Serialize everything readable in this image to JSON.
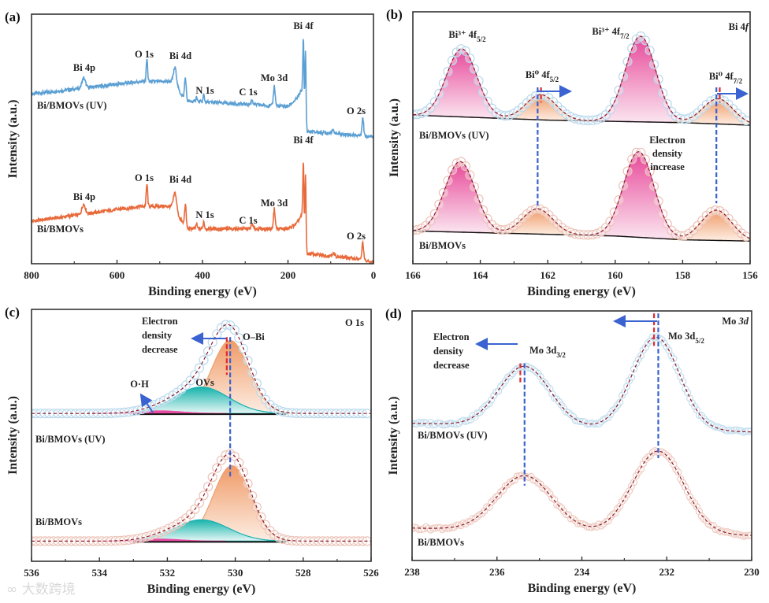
{
  "watermark": "大数跨境",
  "chart_data": [
    {
      "panel": "(a)",
      "type": "line",
      "xlabel": "Binding energy (eV)",
      "ylabel": "Intensity (a.u.)",
      "xlim": [
        800,
        0
      ],
      "ylim": [
        0,
        100
      ],
      "xticks": [
        "800",
        "600",
        "400",
        "200",
        "0"
      ],
      "xtick_values": [
        800,
        600,
        400,
        200,
        0
      ],
      "peak_labels": [
        "Bi 4p",
        "O 1s",
        "Bi 4d",
        "N 1s",
        "C 1s",
        "Mo 3d",
        "Bi 4f",
        "O 2s"
      ],
      "series": [
        {
          "name": "Bi/BMOVs (UV)",
          "color": "#5b9fd3",
          "baseline": [
            [
              800,
              68
            ],
            [
              545,
              73
            ],
            [
              470,
              73
            ],
            [
              438,
              65
            ],
            [
              420,
              65
            ],
            [
              200,
              63
            ],
            [
              180,
              66
            ],
            [
              166,
              70
            ],
            [
              155,
              53
            ],
            [
              0,
              51
            ]
          ],
          "peaks": [
            [
              678,
              4,
              4
            ],
            [
              530,
              9,
              1.6
            ],
            [
              464,
              7,
              3.5
            ],
            [
              440,
              9,
              2
            ],
            [
              414,
              2,
              1.5
            ],
            [
              397,
              3,
              1.5
            ],
            [
              284,
              2,
              2
            ],
            [
              232,
              8,
              2
            ],
            [
              164,
              24,
              1.2
            ],
            [
              159,
              26,
              1.2
            ],
            [
              95,
              1,
              4
            ],
            [
              25,
              7,
              2
            ]
          ]
        },
        {
          "name": "Bi/BMOVs",
          "color": "#e8693a",
          "baseline": [
            [
              800,
              17
            ],
            [
              545,
              23
            ],
            [
              470,
              23
            ],
            [
              438,
              14
            ],
            [
              420,
              14
            ],
            [
              200,
              14
            ],
            [
              180,
              16
            ],
            [
              166,
              20
            ],
            [
              155,
              4
            ],
            [
              40,
              2
            ],
            [
              0,
              0.3
            ]
          ],
          "peaks": [
            [
              678,
              4,
              4
            ],
            [
              530,
              9,
              1.6
            ],
            [
              464,
              7,
              3.5
            ],
            [
              440,
              9,
              2
            ],
            [
              414,
              2,
              1.5
            ],
            [
              397,
              3,
              1.5
            ],
            [
              284,
              2,
              2
            ],
            [
              232,
              8,
              2
            ],
            [
              164,
              24,
              1.2
            ],
            [
              159,
              26,
              1.2
            ],
            [
              95,
              1,
              4
            ],
            [
              25,
              7,
              2
            ]
          ]
        }
      ]
    },
    {
      "panel": "(b)",
      "type": "line",
      "region": "Bi 4",
      "region_italic": "f",
      "xlabel": "Binding energy (eV)",
      "ylabel": "Intensity (a.u.)",
      "xlim": [
        166,
        156
      ],
      "ylim": [
        0,
        100
      ],
      "xticks": [
        "166",
        "164",
        "162",
        "160",
        "158",
        "156"
      ],
      "xtick_values": [
        166,
        164,
        162,
        160,
        158,
        156
      ],
      "component_labels": [
        {
          "main": "Bi³⁺ 4f",
          "sub": "5/2"
        },
        {
          "main": "Bi⁰ 4f",
          "sub": "5/2"
        },
        {
          "main": "Bi³⁺ 4f",
          "sub": "7/2"
        },
        {
          "main": "Bi⁰ 4f",
          "sub": "7/2"
        }
      ],
      "annotation": [
        "Electron",
        "density",
        "increase"
      ],
      "component_colors": {
        "Bi3+": "#e8489a",
        "Bi0": "#f2a070"
      },
      "series": [
        {
          "name": "Bi/BMOVs (UV)",
          "color": "#6fb4e0",
          "marker_color": "#b9d8ec",
          "baseline": [
            [
              166,
              59
            ],
            [
              162,
              57
            ],
            [
              158,
              56
            ],
            [
              156,
              55
            ]
          ],
          "components": [
            [
              "Bi3+",
              164.55,
              27,
              0.45
            ],
            [
              "Bi0",
              162.2,
              10,
              0.45
            ],
            [
              "Bi3+",
              159.25,
              34,
              0.45
            ],
            [
              "Bi0",
              156.95,
              10,
              0.45
            ]
          ]
        },
        {
          "name": "Bi/BMOVs",
          "color": "#f08a5a",
          "marker_color": "#ecc3b8",
          "baseline": [
            [
              166,
              13
            ],
            [
              160,
              11
            ],
            [
              158,
              9.5
            ],
            [
              156,
              9
            ]
          ],
          "components": [
            [
              "Bi3+",
              164.6,
              28,
              0.45
            ],
            [
              "Bi0",
              162.3,
              10,
              0.45
            ],
            [
              "Bi3+",
              159.3,
              34,
              0.45
            ],
            [
              "Bi0",
              157.0,
              12,
              0.45
            ]
          ]
        }
      ],
      "reference_lines": [
        {
          "x": 162.3,
          "y": [
            70,
            22
          ],
          "color": "#3a62d0"
        },
        {
          "x": 162.2,
          "y": [
            70,
            64
          ],
          "color": "#e02b2b"
        },
        {
          "x": 157.0,
          "y": [
            70,
            24
          ],
          "color": "#3a62d0"
        },
        {
          "x": 156.9,
          "y": [
            70,
            64
          ],
          "color": "#e02b2b"
        }
      ]
    },
    {
      "panel": "(c)",
      "type": "line",
      "region": "O 1s",
      "xlabel": "Binding energy (eV)",
      "ylabel": "Intensity (a.u.)",
      "xlim": [
        536,
        526
      ],
      "ylim": [
        0,
        100
      ],
      "xticks": [
        "536",
        "534",
        "532",
        "530",
        "528",
        "526"
      ],
      "xtick_values": [
        536,
        534,
        532,
        530,
        528,
        526
      ],
      "component_labels": [
        "O–Bi",
        "OVs",
        "O·H"
      ],
      "annotation": [
        "Electron",
        "density",
        "decrease"
      ],
      "component_colors": {
        "O-Bi": "#f2a070",
        "OVs": "#1ab8b0",
        "O-H": "#e84aa0"
      },
      "series": [
        {
          "name": "Bi/BMOVs (UV)",
          "color": "#6fb4e0",
          "marker_color": "#b9d8ec",
          "baseline": [
            [
              536,
              58.7
            ],
            [
              526,
              58.7
            ]
          ],
          "components": [
            [
              "O-Bi",
              530.15,
              29,
              0.55
            ],
            [
              "OVs",
              531.0,
              10.5,
              0.8
            ],
            [
              "O-H",
              532.2,
              1,
              0.6
            ]
          ]
        },
        {
          "name": "Bi/BMOVs",
          "color": "#f08a5a",
          "marker_color": "#ecc3b8",
          "baseline": [
            [
              536,
              8
            ],
            [
              526,
              8
            ]
          ],
          "components": [
            [
              "O-Bi",
              530.1,
              30,
              0.55
            ],
            [
              "OVs",
              531.0,
              8.5,
              0.8
            ],
            [
              "O-H",
              532.2,
              0.8,
              0.6
            ]
          ]
        }
      ],
      "reference_lines": [
        {
          "x": 530.15,
          "y": [
            89,
            33
          ],
          "color": "#3a62d0"
        },
        {
          "x": 530.25,
          "y": [
            89,
            74
          ],
          "color": "#e02b2b"
        }
      ]
    },
    {
      "panel": "(d)",
      "type": "line",
      "region": "Mo ",
      "region_italic": "3d",
      "xlabel": "Binding energy (eV)",
      "ylabel": "Intensity (a.u.)",
      "xlim": [
        238,
        230
      ],
      "ylim": [
        0,
        100
      ],
      "xticks": [
        "238",
        "236",
        "234",
        "232",
        "230"
      ],
      "xtick_values": [
        238,
        236,
        234,
        232,
        230
      ],
      "component_labels": [
        {
          "main": "Mo 3d",
          "sub": "3/2"
        },
        {
          "main": "Mo 3d",
          "sub": "5/2"
        }
      ],
      "annotation": [
        "Electron",
        "density",
        "decrease"
      ],
      "series": [
        {
          "name": "Bi/BMOVs (UV)",
          "color": "#6fb4e0",
          "marker_color": "#c4deee",
          "baseline": [
            [
              238,
              55
            ],
            [
              230,
              51.5
            ]
          ],
          "components": [
            [
              "Mo",
              235.35,
              24,
              0.6
            ],
            [
              "Mo",
              232.25,
              37,
              0.55
            ]
          ]
        },
        {
          "name": "Bi/BMOVs",
          "color": "#f08a5a",
          "marker_color": "#efccc2",
          "baseline": [
            [
              238,
              13
            ],
            [
              230,
              10
            ]
          ],
          "components": [
            [
              "Mo",
              235.35,
              22,
              0.65
            ],
            [
              "Mo",
              232.2,
              33,
              0.6
            ]
          ]
        }
      ],
      "reference_lines": [
        {
          "x": 235.35,
          "y": [
            79,
            30
          ],
          "color": "#3a62d0"
        },
        {
          "x": 235.45,
          "y": [
            79,
            71
          ],
          "color": "#e02b2b"
        },
        {
          "x": 232.2,
          "y": [
            99,
            41
          ],
          "color": "#3a62d0"
        },
        {
          "x": 232.3,
          "y": [
            99,
            86
          ],
          "color": "#e02b2b"
        }
      ]
    }
  ]
}
